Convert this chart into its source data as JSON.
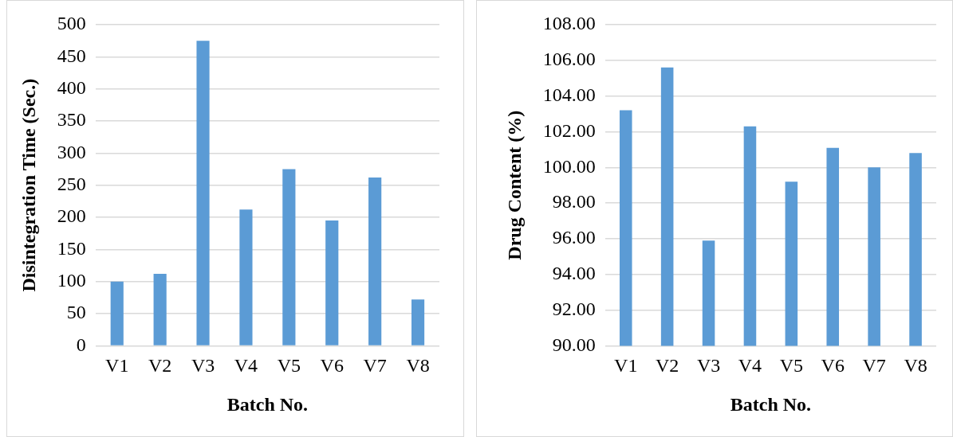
{
  "chart_data": [
    {
      "type": "bar",
      "xlabel": "Batch No.",
      "ylabel": "Disintegration Time (Sec.)",
      "categories": [
        "V1",
        "V2",
        "V3",
        "V4",
        "V5",
        "V6",
        "V7",
        "V8"
      ],
      "values": [
        100,
        112,
        475,
        212,
        275,
        195,
        262,
        72
      ],
      "color": "#5b9bd5",
      "ylim": [
        0,
        500
      ],
      "yticks": [
        0,
        50,
        100,
        150,
        200,
        250,
        300,
        350,
        400,
        450,
        500
      ],
      "grid": "y"
    },
    {
      "type": "bar",
      "xlabel": "Batch No.",
      "ylabel": "Drug Content (%)",
      "categories": [
        "V1",
        "V2",
        "V3",
        "V4",
        "V5",
        "V6",
        "V7",
        "V8"
      ],
      "values": [
        103.2,
        105.6,
        95.9,
        102.3,
        99.2,
        101.1,
        100.0,
        100.8
      ],
      "color": "#5b9bd5",
      "ylim": [
        90,
        108
      ],
      "yticks": [
        {
          "value": 90,
          "label": "90.00"
        },
        {
          "value": 92,
          "label": "92.00"
        },
        {
          "value": 94,
          "label": "94.00"
        },
        {
          "value": 96,
          "label": "96.00"
        },
        {
          "value": 98,
          "label": "98.00"
        },
        {
          "value": 100,
          "label": "100.00"
        },
        {
          "value": 102,
          "label": "102.00"
        },
        {
          "value": 104,
          "label": "104.00"
        },
        {
          "value": 106,
          "label": "106.00"
        },
        {
          "value": 108,
          "label": "108.00"
        }
      ],
      "grid": "y"
    }
  ]
}
